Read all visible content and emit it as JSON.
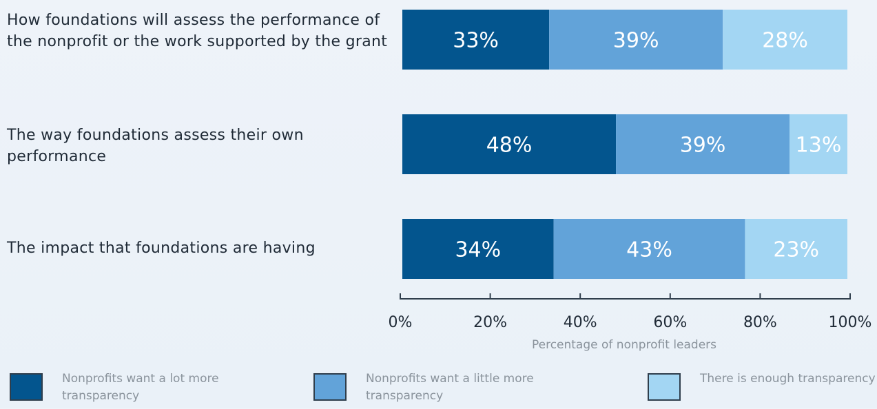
{
  "chart_data": {
    "type": "bar",
    "orientation": "horizontal",
    "stacked": true,
    "categories": [
      "How foundations will assess the performance of the nonprofit or the work supported by the grant",
      "The way foundations assess their own performance",
      "The impact that foundations are having"
    ],
    "series": [
      {
        "name": "Nonprofits want a lot more transparency",
        "values": [
          33,
          48,
          34
        ],
        "labels": [
          "33%",
          "48%",
          "34%"
        ],
        "color": "#03558e"
      },
      {
        "name": "Nonprofits want a little more transparency",
        "values": [
          39,
          39,
          43
        ],
        "labels": [
          "39%",
          "39%",
          "43%"
        ],
        "color": "#62a3d9"
      },
      {
        "name": "There is enough transparency",
        "values": [
          28,
          13,
          23
        ],
        "labels": [
          "28%",
          "13%",
          "23%"
        ],
        "color": "#a3d6f3"
      }
    ],
    "xlabel": "Percentage of nonprofit leaders",
    "xlim": [
      0,
      100
    ],
    "xticks": [
      "0%",
      "20%",
      "40%",
      "60%",
      "80%",
      "100%"
    ],
    "legend_position": "bottom"
  }
}
